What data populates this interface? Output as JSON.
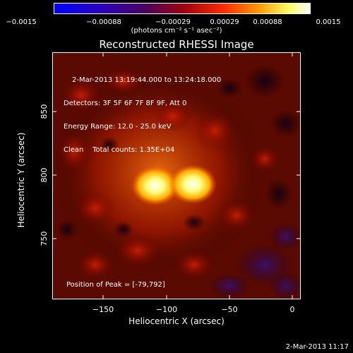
{
  "colorbar": {
    "ticks": [
      "−0.0015",
      "−0.00088",
      "−0.00029",
      "0.00029",
      "0.00088",
      "0.0015"
    ],
    "units": "(photons cm⁻² s⁻¹ asec⁻²)"
  },
  "title": "Reconstructed RHESSI Image",
  "info": {
    "time_range": "2-Mar-2013 13:19:44.000 to 13:24:18.000",
    "detectors": "Detectors: 3F 5F 6F 7F 8F 9F, Att 0",
    "energy_range": "Energy Range: 12.0 - 25.0 keV",
    "clean_counts": "Clean    Total counts: 1.35E+04",
    "peak": "Position of Peak = [-79,792]"
  },
  "x_axis": {
    "label": "Heliocentric X (arcsec)",
    "ticks": [
      "−150",
      "−100",
      "−50",
      "0"
    ]
  },
  "y_axis": {
    "label": "Heliocentric Y (arcsec)",
    "ticks": [
      "850",
      "800",
      "750"
    ]
  },
  "footer": "2-Mar-2013 11:17",
  "colors": {
    "colorbar_stops": [
      "#0000ff",
      "#2a00c0",
      "#5a007a",
      "#9a0010",
      "#ff2a00",
      "#ff9a00",
      "#ffff66",
      "#ffffff"
    ]
  }
}
